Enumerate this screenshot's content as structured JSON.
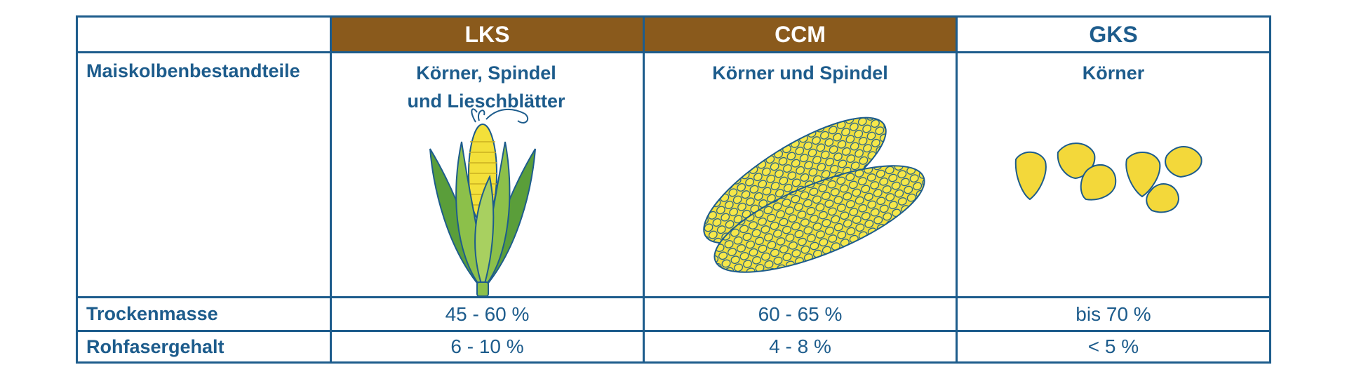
{
  "columns": [
    {
      "header": "LKS",
      "components": "Körner, Spindel und Lieschblätter",
      "dry_matter": "45 - 60 %",
      "crude_fiber": "6 - 10 %",
      "icon": "corn-husk-icon"
    },
    {
      "header": "CCM",
      "components": "Körner und Spindel",
      "dry_matter": "60 - 65 %",
      "crude_fiber": "4 - 8 %",
      "icon": "corn-cob-icon"
    },
    {
      "header": "GKS",
      "components": "Körner",
      "dry_matter": "bis 70 %",
      "crude_fiber": "< 5 %",
      "icon": "corn-kernels-icon"
    }
  ],
  "rows": {
    "components_label": "Maiskolbenbestandteile",
    "dry_matter_label": "Trockenmasse",
    "crude_fiber_label": "Rohfasergehalt"
  },
  "colors": {
    "border": "#1d5c8c",
    "header_brown": "#8a5a1c",
    "text_blue": "#1d5c8c",
    "corn_yellow": "#f3e03a",
    "husk_green": "#8cc04a"
  }
}
